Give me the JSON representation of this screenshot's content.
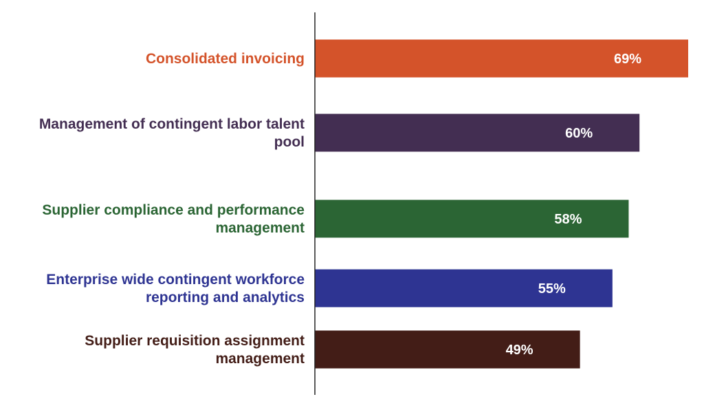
{
  "chart_data": {
    "type": "bar",
    "orientation": "horizontal",
    "categories": [
      "Consolidated invoicing",
      "Management of contingent labor talent pool",
      "Supplier  compliance and performance management",
      "Enterprise wide contingent workforce reporting and analytics",
      "Supplier requisition assignment management"
    ],
    "category_lines": [
      [
        "Consolidated invoicing"
      ],
      [
        "Management of contingent labor talent",
        "pool"
      ],
      [
        "Supplier  compliance and performance",
        "management"
      ],
      [
        "Enterprise wide contingent workforce",
        "reporting and analytics"
      ],
      [
        "Supplier requisition assignment",
        "management"
      ]
    ],
    "values": [
      69,
      60,
      58,
      55,
      49
    ],
    "value_labels": [
      "69%",
      "60%",
      "58%",
      "55%",
      "49%"
    ],
    "colors": [
      "#d4532a",
      "#432e52",
      "#2b6534",
      "#2e3492",
      "#431d17"
    ],
    "xlim": [
      0,
      69
    ],
    "title": "",
    "xlabel": "",
    "ylabel": "",
    "grid": false,
    "legend": "none"
  }
}
